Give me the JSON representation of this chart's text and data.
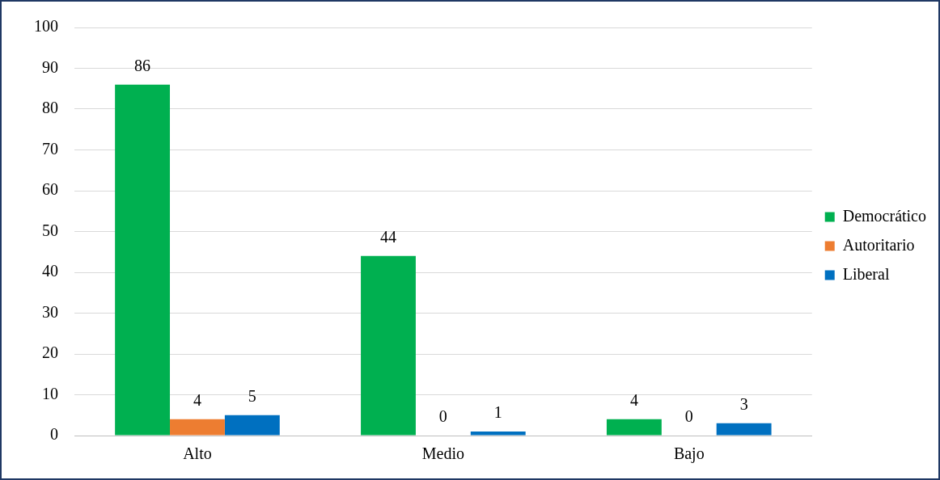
{
  "chart_data": {
    "type": "bar",
    "categories": [
      "Alto",
      "Medio",
      "Bajo"
    ],
    "series": [
      {
        "name": "Democrático",
        "color": "#00b050",
        "values": [
          86,
          44,
          4
        ]
      },
      {
        "name": "Autoritario",
        "color": "#ed7d31",
        "values": [
          4,
          0,
          0
        ]
      },
      {
        "name": "Liberal",
        "color": "#0070c0",
        "values": [
          5,
          1,
          3
        ]
      }
    ],
    "ylim": [
      0,
      100
    ],
    "yticks": [
      0,
      10,
      20,
      30,
      40,
      50,
      60,
      70,
      80,
      90,
      100
    ],
    "grid": "y",
    "legend": "right",
    "data_labels": true
  }
}
